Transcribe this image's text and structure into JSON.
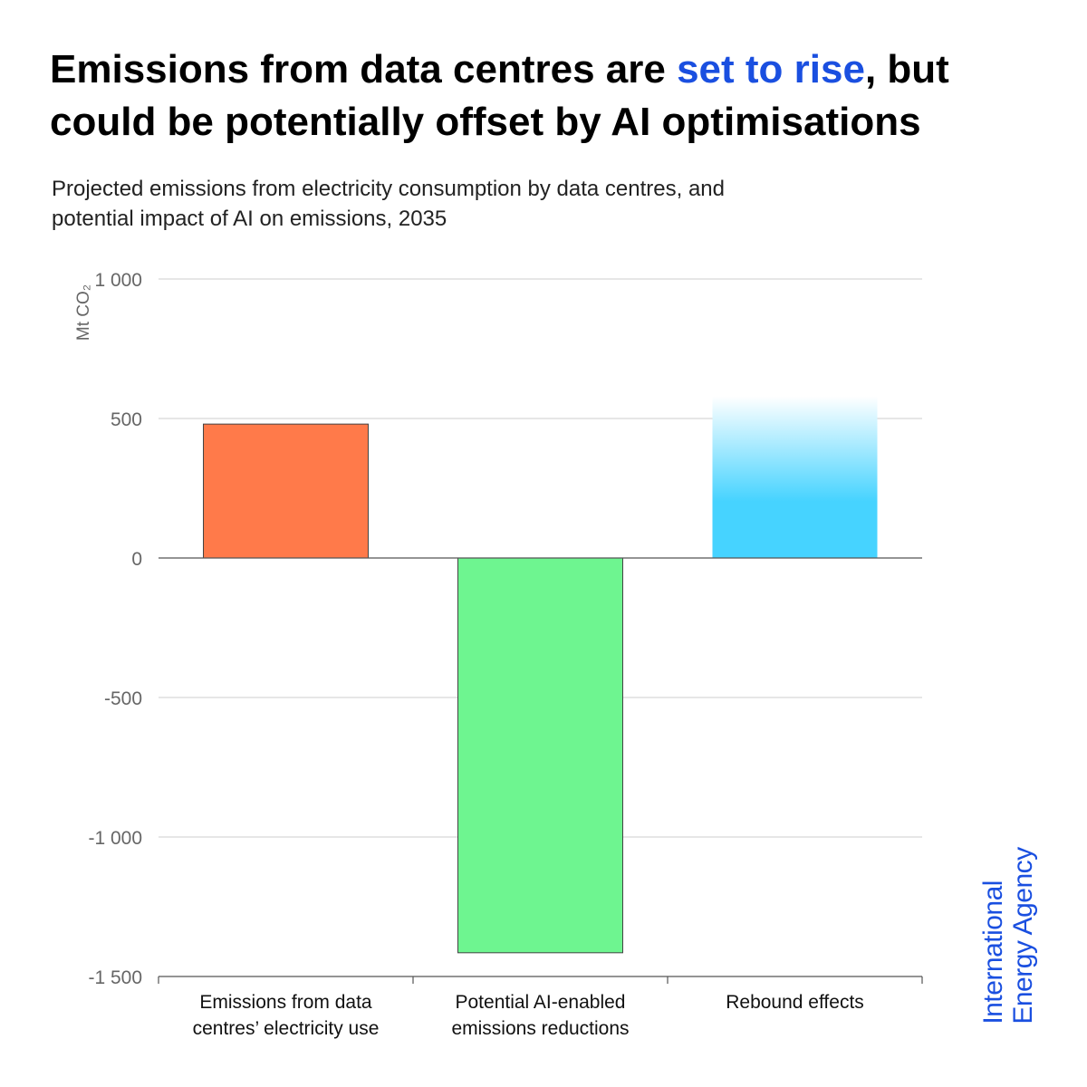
{
  "header": {
    "title_part1": "Emissions from data centres are ",
    "title_highlight": "set to rise",
    "title_part2": ", but could be potentially offset by AI optimisations",
    "subtitle_line1": "Projected emissions from electricity consumption by data centres, and",
    "subtitle_line2": "potential impact of AI on emissions, 2035"
  },
  "logo": {
    "line1": "International",
    "line2": "Energy Agency"
  },
  "colors": {
    "highlight": "#1a4fe0",
    "bar_emissions": "#ff7a4a",
    "bar_reductions": "#6ef590",
    "bar_rebound_bottom": "#46d3ff",
    "bar_rebound_top": "#ffffff"
  },
  "chart_data": {
    "type": "bar",
    "ylabel": "Mt CO₂",
    "ylim": [
      -1500,
      1000
    ],
    "yticks": [
      1000,
      500,
      0,
      -500,
      -1000,
      -1500
    ],
    "ytick_labels": [
      "1 000",
      "500",
      "0",
      "-500",
      "-1 000",
      "-1 500"
    ],
    "grid": true,
    "categories": [
      {
        "line1": "Emissions from data",
        "line2": "centres’ electricity use"
      },
      {
        "line1": "Potential AI-enabled",
        "line2": "emissions reductions"
      },
      {
        "line1": "Rebound effects",
        "line2": ""
      }
    ],
    "values": [
      480,
      -1415,
      580
    ],
    "value_notes": [
      "",
      "",
      "uncertain range, shown as gradient fading upward"
    ]
  }
}
